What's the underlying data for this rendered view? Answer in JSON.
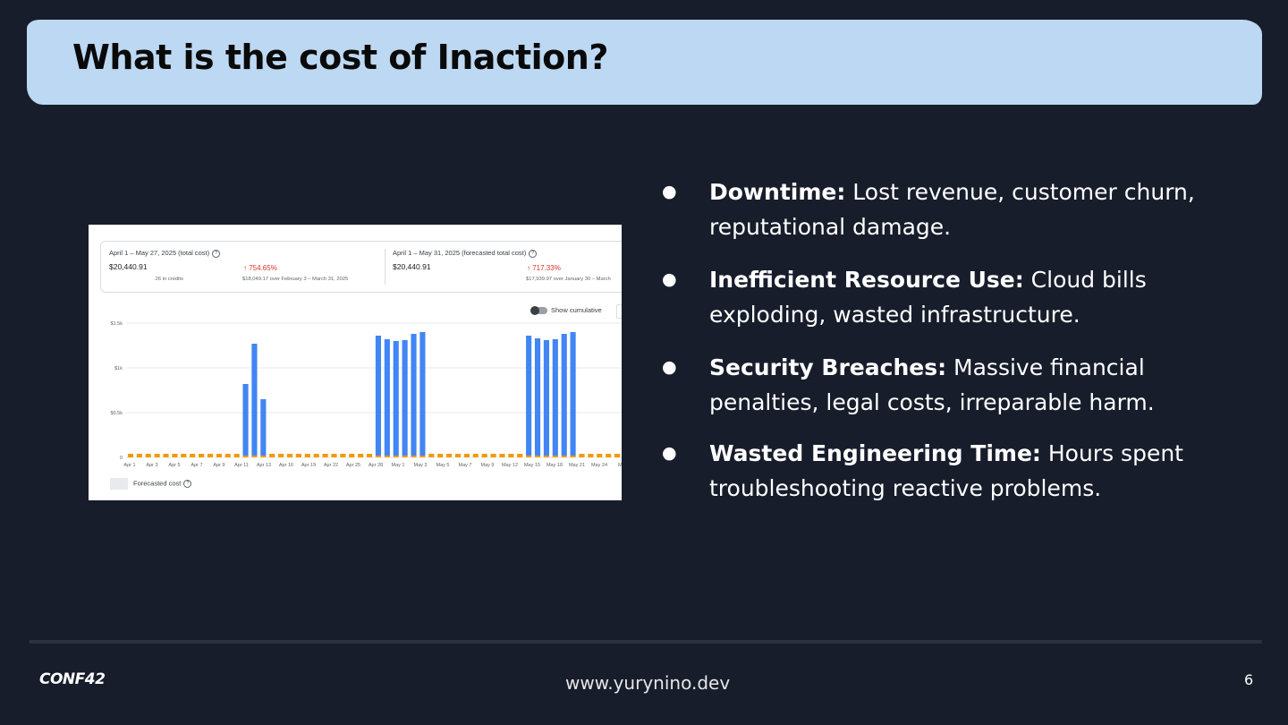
{
  "slide": {
    "title": "What is the cost of Inaction?",
    "colors": {
      "background": "#171d2b",
      "banner": "#bdd8f2",
      "bar": "#4285f4",
      "forecast_bar": "#f29900",
      "increase": "#d93025"
    }
  },
  "billing": {
    "left": {
      "period": "April 1 – May 27, 2025 (total cost)",
      "amount": "$20,440.91",
      "credits": ".26 in credits",
      "change": "754.65%",
      "change_note": "$18,049.17 over February 3 – March 31, 2025"
    },
    "right": {
      "period": "April 1 – May 31, 2025 (forecasted total cost)",
      "amount": "$20,440.91",
      "change": "717.33%",
      "change_note": "$17,939.97 over January 30 – March"
    },
    "toggle_label": "Show cumulative",
    "legend_label": "Forecasted cost",
    "help_icon": "help-circle-icon",
    "arrow_icon": "arrow-up-icon"
  },
  "chart_data": {
    "type": "bar",
    "ylim": [
      0,
      1500
    ],
    "yticks": [
      "$1.5k",
      "$1k",
      "$0.5k",
      "0"
    ],
    "xticks": [
      "Apr 1",
      "Apr 3",
      "Apr 5",
      "Apr 7",
      "Apr 9",
      "Apr 11",
      "Apr 13",
      "Apr 16",
      "Apr 19",
      "Apr 22",
      "Apr 25",
      "Apr 28",
      "May 1",
      "May 3",
      "May 5",
      "May 7",
      "May 9",
      "May 12",
      "May 15",
      "May 18",
      "May 21",
      "May 24",
      "Ma"
    ],
    "categories": [
      "Apr 1",
      "Apr 2",
      "Apr 3",
      "Apr 4",
      "Apr 5",
      "Apr 6",
      "Apr 7",
      "Apr 8",
      "Apr 9",
      "Apr 10",
      "Apr 11",
      "Apr 12",
      "Apr 13",
      "Apr 14",
      "Apr 15",
      "Apr 16",
      "Apr 17",
      "Apr 18",
      "Apr 19",
      "Apr 20",
      "Apr 21",
      "Apr 22",
      "Apr 23",
      "Apr 24",
      "Apr 25",
      "Apr 26",
      "Apr 27",
      "Apr 28",
      "Apr 29",
      "Apr 30",
      "May 1",
      "May 2",
      "May 3",
      "May 4",
      "May 5",
      "May 6",
      "May 7",
      "May 8",
      "May 9",
      "May 10",
      "May 11",
      "May 12",
      "May 13",
      "May 14",
      "May 15",
      "May 16",
      "May 17",
      "May 18",
      "May 19",
      "May 20",
      "May 21",
      "May 22",
      "May 23",
      "May 24",
      "May 25",
      "May 26"
    ],
    "series": [
      {
        "values": [
          40,
          40,
          40,
          40,
          40,
          40,
          40,
          40,
          40,
          40,
          40,
          40,
          40,
          820,
          1270,
          650,
          40,
          40,
          40,
          40,
          40,
          40,
          40,
          40,
          40,
          40,
          40,
          40,
          1360,
          1320,
          1300,
          1310,
          1380,
          1400,
          40,
          40,
          40,
          40,
          40,
          40,
          40,
          40,
          40,
          40,
          40,
          1360,
          1330,
          1310,
          1320,
          1380,
          1400,
          40,
          40,
          40,
          40,
          40
        ]
      }
    ]
  },
  "bullets": [
    {
      "term": "Downtime:",
      "text": " Lost revenue, customer churn, reputational damage."
    },
    {
      "term": "Inefficient Resource Use:",
      "text": " Cloud bills exploding, wasted infrastructure."
    },
    {
      "term": "Security Breaches:",
      "text": " Massive financial penalties, legal costs, irreparable harm."
    },
    {
      "term": "Wasted Engineering Time:",
      "text": " Hours spent troubleshooting reactive problems."
    }
  ],
  "footer": {
    "logo": "CONF42",
    "site": "www.yurynino.dev",
    "page": "6"
  }
}
